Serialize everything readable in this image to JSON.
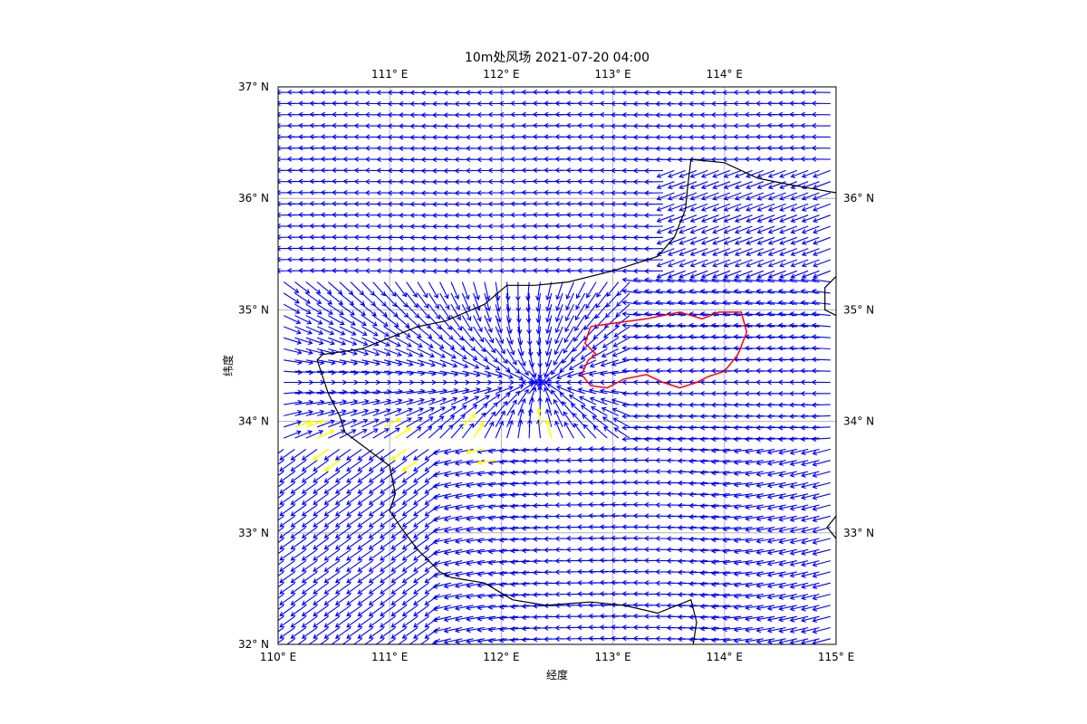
{
  "title": "10m处风场 2021-07-20 04:00",
  "xlabel": "经度",
  "ylabel": "纬度",
  "colors": {
    "arrows": "#0000ff",
    "highlight_arrows": "#ffff00",
    "boundary": "#000000",
    "region": "#ff0000",
    "grid": "#b0b0b0",
    "frame": "#000000"
  },
  "map": {
    "lon_range": [
      110,
      115
    ],
    "lat_range": [
      32,
      37
    ],
    "lon_ticks": [
      110,
      111,
      112,
      113,
      114,
      115
    ],
    "lat_ticks": [
      32,
      33,
      34,
      35,
      36,
      37
    ],
    "bottom_tick_labels": [
      "110° E",
      "111° E",
      "112° E",
      "113° E",
      "114° E",
      "115° E"
    ],
    "top_tick_labels": [
      "111° E",
      "112° E",
      "113° E",
      "114° E"
    ],
    "left_tick_labels": [
      "32° N",
      "33° N",
      "34° N",
      "35° N",
      "36° N",
      "37° N"
    ],
    "right_tick_labels": [
      "33° N",
      "34° N",
      "35° N",
      "36° N"
    ],
    "grid": true
  },
  "wind_field": {
    "type": "quiver",
    "grid_step_deg": 0.1,
    "flow_features": [
      {
        "kind": "north-band",
        "lat_min": 35.3,
        "lat_max": 37,
        "direction": "westward"
      },
      {
        "kind": "convergence",
        "lon": 112.45,
        "lat": 34.35,
        "direction": "easterly inflow to center"
      },
      {
        "kind": "south-band",
        "lat_min": 32,
        "lat_max": 33.8,
        "direction": "westward"
      }
    ],
    "highlight_region": {
      "lon": [
        110.0,
        112.45
      ],
      "lat": [
        33.6,
        34.0
      ],
      "color": "yellow"
    }
  },
  "boundary_polyline": [
    [
      113.7,
      36.35
    ],
    [
      114.0,
      36.32
    ],
    [
      114.3,
      36.18
    ],
    [
      114.6,
      36.12
    ],
    [
      115.0,
      36.05
    ],
    [
      113.7,
      36.35
    ],
    [
      113.67,
      36.1
    ],
    [
      113.65,
      35.9
    ],
    [
      113.55,
      35.65
    ],
    [
      113.4,
      35.48
    ],
    [
      113.0,
      35.35
    ],
    [
      112.6,
      35.25
    ],
    [
      112.3,
      35.22
    ],
    [
      112.05,
      35.22
    ],
    [
      111.85,
      35.05
    ],
    [
      111.5,
      34.9
    ],
    [
      111.25,
      34.85
    ],
    [
      111.0,
      34.75
    ],
    [
      110.75,
      34.65
    ],
    [
      110.4,
      34.6
    ],
    [
      110.35,
      34.55
    ],
    [
      110.45,
      34.25
    ],
    [
      110.55,
      34.05
    ],
    [
      110.6,
      33.9
    ],
    [
      110.8,
      33.75
    ],
    [
      111.0,
      33.6
    ],
    [
      111.05,
      33.35
    ],
    [
      111.0,
      33.2
    ],
    [
      111.1,
      33.05
    ],
    [
      111.25,
      32.85
    ],
    [
      111.45,
      32.65
    ],
    [
      111.55,
      32.6
    ],
    [
      111.85,
      32.55
    ],
    [
      112.1,
      32.4
    ],
    [
      112.4,
      32.35
    ],
    [
      112.8,
      32.38
    ],
    [
      113.1,
      32.35
    ],
    [
      113.4,
      32.28
    ],
    [
      113.7,
      32.4
    ],
    [
      113.75,
      32.2
    ],
    [
      113.72,
      32.0
    ]
  ],
  "boundary_east_segments": [
    [
      [
        115.0,
        35.3
      ],
      [
        114.9,
        35.2
      ],
      [
        114.9,
        35.0
      ],
      [
        115.0,
        34.95
      ]
    ],
    [
      [
        115.0,
        33.15
      ],
      [
        114.92,
        33.05
      ],
      [
        115.0,
        32.95
      ]
    ]
  ],
  "region_polyline": [
    [
      112.8,
      34.85
    ],
    [
      113.0,
      34.88
    ],
    [
      113.3,
      34.92
    ],
    [
      113.6,
      34.98
    ],
    [
      113.8,
      34.92
    ],
    [
      113.95,
      34.98
    ],
    [
      114.15,
      34.98
    ],
    [
      114.2,
      34.8
    ],
    [
      114.12,
      34.6
    ],
    [
      114.0,
      34.45
    ],
    [
      113.85,
      34.4
    ],
    [
      113.75,
      34.35
    ],
    [
      113.6,
      34.3
    ],
    [
      113.45,
      34.35
    ],
    [
      113.3,
      34.42
    ],
    [
      113.1,
      34.38
    ],
    [
      112.95,
      34.3
    ],
    [
      112.8,
      34.32
    ],
    [
      112.72,
      34.42
    ],
    [
      112.78,
      34.55
    ],
    [
      112.85,
      34.6
    ],
    [
      112.75,
      34.7
    ],
    [
      112.8,
      34.85
    ]
  ]
}
